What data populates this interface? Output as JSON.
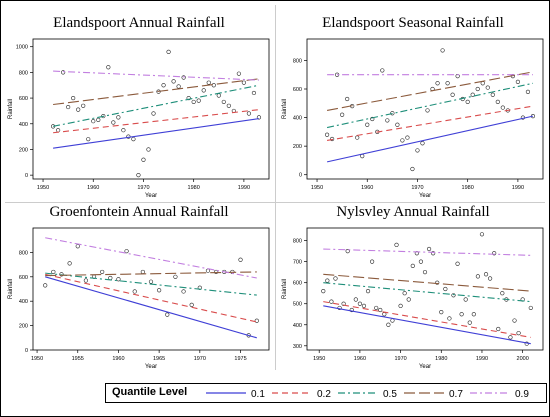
{
  "legend": {
    "title": "Quantile Level",
    "entries": [
      {
        "label": "0.1",
        "color": "#3f3fd6",
        "dash": "solid"
      },
      {
        "label": "0.2",
        "color": "#d94c4c",
        "dash": "dashed"
      },
      {
        "label": "0.5",
        "color": "#1f8f7a",
        "dash": "dashdot"
      },
      {
        "label": "0.7",
        "color": "#8b5a3c",
        "dash": "longdash"
      },
      {
        "label": "0.9",
        "color": "#c27fe0",
        "dash": "dashdot"
      }
    ]
  },
  "chart_data": [
    {
      "type": "scatter",
      "title": "Elandspoort Annual Rainfall",
      "xlabel": "Year",
      "ylabel": "Rainfall",
      "xlim": [
        1948,
        1995
      ],
      "ylim": [
        -30,
        1060
      ],
      "xticks": [
        1950,
        1960,
        1970,
        1980,
        1990
      ],
      "yticks": [
        0,
        200,
        400,
        600,
        800,
        1000
      ],
      "points": [
        [
          1952,
          380
        ],
        [
          1953,
          350
        ],
        [
          1954,
          800
        ],
        [
          1955,
          530
        ],
        [
          1956,
          600
        ],
        [
          1957,
          510
        ],
        [
          1958,
          540
        ],
        [
          1959,
          280
        ],
        [
          1960,
          420
        ],
        [
          1961,
          430
        ],
        [
          1962,
          460
        ],
        [
          1963,
          840
        ],
        [
          1964,
          410
        ],
        [
          1965,
          450
        ],
        [
          1966,
          350
        ],
        [
          1967,
          300
        ],
        [
          1968,
          280
        ],
        [
          1969,
          0
        ],
        [
          1970,
          120
        ],
        [
          1971,
          200
        ],
        [
          1972,
          480
        ],
        [
          1973,
          650
        ],
        [
          1974,
          700
        ],
        [
          1975,
          960
        ],
        [
          1976,
          730
        ],
        [
          1977,
          690
        ],
        [
          1978,
          760
        ],
        [
          1979,
          600
        ],
        [
          1980,
          570
        ],
        [
          1981,
          580
        ],
        [
          1982,
          660
        ],
        [
          1983,
          720
        ],
        [
          1984,
          700
        ],
        [
          1985,
          620
        ],
        [
          1986,
          570
        ],
        [
          1987,
          540
        ],
        [
          1988,
          500
        ],
        [
          1989,
          790
        ],
        [
          1990,
          720
        ],
        [
          1991,
          480
        ],
        [
          1992,
          640
        ],
        [
          1993,
          450
        ]
      ],
      "series": [
        {
          "name": "0.1",
          "x": [
            1952,
            1993
          ],
          "y": [
            210,
            440
          ]
        },
        {
          "name": "0.2",
          "x": [
            1952,
            1993
          ],
          "y": [
            330,
            510
          ]
        },
        {
          "name": "0.5",
          "x": [
            1952,
            1993
          ],
          "y": [
            380,
            700
          ]
        },
        {
          "name": "0.7",
          "x": [
            1952,
            1993
          ],
          "y": [
            550,
            750
          ]
        },
        {
          "name": "0.9",
          "x": [
            1952,
            1993
          ],
          "y": [
            810,
            740
          ]
        }
      ]
    },
    {
      "type": "scatter",
      "title": "Elandspoort Seasonal Rainfall",
      "xlabel": "Year",
      "ylabel": "Rainfall",
      "xlim": [
        1948,
        1995
      ],
      "ylim": [
        -30,
        950
      ],
      "xticks": [
        1950,
        1960,
        1970,
        1980,
        1990
      ],
      "yticks": [
        0,
        200,
        400,
        600,
        800
      ],
      "points": [
        [
          1952,
          280
        ],
        [
          1953,
          250
        ],
        [
          1954,
          700
        ],
        [
          1955,
          420
        ],
        [
          1956,
          530
        ],
        [
          1957,
          480
        ],
        [
          1958,
          260
        ],
        [
          1959,
          130
        ],
        [
          1960,
          350
        ],
        [
          1961,
          390
        ],
        [
          1962,
          300
        ],
        [
          1963,
          730
        ],
        [
          1964,
          380
        ],
        [
          1965,
          430
        ],
        [
          1966,
          350
        ],
        [
          1967,
          240
        ],
        [
          1968,
          260
        ],
        [
          1969,
          40
        ],
        [
          1970,
          170
        ],
        [
          1971,
          220
        ],
        [
          1972,
          450
        ],
        [
          1973,
          600
        ],
        [
          1974,
          640
        ],
        [
          1975,
          870
        ],
        [
          1976,
          640
        ],
        [
          1977,
          560
        ],
        [
          1978,
          690
        ],
        [
          1979,
          530
        ],
        [
          1980,
          510
        ],
        [
          1981,
          560
        ],
        [
          1982,
          600
        ],
        [
          1983,
          640
        ],
        [
          1984,
          610
        ],
        [
          1985,
          560
        ],
        [
          1986,
          510
        ],
        [
          1987,
          470
        ],
        [
          1988,
          450
        ],
        [
          1989,
          690
        ],
        [
          1990,
          650
        ],
        [
          1991,
          400
        ],
        [
          1992,
          580
        ],
        [
          1993,
          410
        ]
      ],
      "series": [
        {
          "name": "0.1",
          "x": [
            1952,
            1993
          ],
          "y": [
            90,
            410
          ]
        },
        {
          "name": "0.2",
          "x": [
            1952,
            1993
          ],
          "y": [
            240,
            480
          ]
        },
        {
          "name": "0.5",
          "x": [
            1952,
            1993
          ],
          "y": [
            330,
            640
          ]
        },
        {
          "name": "0.7",
          "x": [
            1952,
            1993
          ],
          "y": [
            450,
            720
          ]
        },
        {
          "name": "0.9",
          "x": [
            1952,
            1993
          ],
          "y": [
            700,
            700
          ]
        }
      ]
    },
    {
      "type": "scatter",
      "title": "Groenfontein Annual Rainfall",
      "xlabel": "Year",
      "ylabel": "Rainfall",
      "xlim": [
        1949.5,
        1978.5
      ],
      "ylim": [
        0,
        1000
      ],
      "xticks": [
        1950,
        1955,
        1960,
        1965,
        1970,
        1975
      ],
      "yticks": [
        0,
        200,
        400,
        600,
        800
      ],
      "points": [
        [
          1951,
          530
        ],
        [
          1952,
          640
        ],
        [
          1953,
          620
        ],
        [
          1954,
          710
        ],
        [
          1955,
          850
        ],
        [
          1956,
          570
        ],
        [
          1957,
          600
        ],
        [
          1958,
          640
        ],
        [
          1959,
          590
        ],
        [
          1960,
          580
        ],
        [
          1961,
          810
        ],
        [
          1962,
          480
        ],
        [
          1963,
          640
        ],
        [
          1964,
          560
        ],
        [
          1965,
          490
        ],
        [
          1966,
          290
        ],
        [
          1967,
          600
        ],
        [
          1968,
          480
        ],
        [
          1969,
          370
        ],
        [
          1970,
          510
        ],
        [
          1971,
          650
        ],
        [
          1972,
          640
        ],
        [
          1973,
          640
        ],
        [
          1974,
          640
        ],
        [
          1975,
          740
        ],
        [
          1976,
          120
        ],
        [
          1977,
          240
        ]
      ],
      "series": [
        {
          "name": "0.1",
          "x": [
            1951,
            1977
          ],
          "y": [
            600,
            100
          ]
        },
        {
          "name": "0.2",
          "x": [
            1951,
            1977
          ],
          "y": [
            620,
            230
          ]
        },
        {
          "name": "0.5",
          "x": [
            1951,
            1977
          ],
          "y": [
            630,
            450
          ]
        },
        {
          "name": "0.7",
          "x": [
            1951,
            1977
          ],
          "y": [
            610,
            640
          ]
        },
        {
          "name": "0.9",
          "x": [
            1951,
            1977
          ],
          "y": [
            920,
            590
          ]
        }
      ]
    },
    {
      "type": "scatter",
      "title": "Nylsvley Annual Rainfall",
      "xlabel": "Year",
      "ylabel": "Rainfall",
      "xlim": [
        1947,
        2005
      ],
      "ylim": [
        280,
        860
      ],
      "xticks": [
        1950,
        1960,
        1970,
        1980,
        1990,
        2000
      ],
      "yticks": [
        300,
        400,
        500,
        600,
        700,
        800
      ],
      "points": [
        [
          1951,
          560
        ],
        [
          1952,
          610
        ],
        [
          1953,
          510
        ],
        [
          1954,
          620
        ],
        [
          1955,
          480
        ],
        [
          1956,
          500
        ],
        [
          1957,
          750
        ],
        [
          1958,
          470
        ],
        [
          1959,
          520
        ],
        [
          1960,
          500
        ],
        [
          1961,
          490
        ],
        [
          1962,
          560
        ],
        [
          1963,
          700
        ],
        [
          1964,
          480
        ],
        [
          1965,
          470
        ],
        [
          1966,
          450
        ],
        [
          1967,
          400
        ],
        [
          1968,
          420
        ],
        [
          1969,
          780
        ],
        [
          1970,
          490
        ],
        [
          1971,
          550
        ],
        [
          1972,
          520
        ],
        [
          1973,
          680
        ],
        [
          1974,
          740
        ],
        [
          1975,
          700
        ],
        [
          1976,
          650
        ],
        [
          1977,
          760
        ],
        [
          1978,
          740
        ],
        [
          1979,
          600
        ],
        [
          1980,
          460
        ],
        [
          1981,
          570
        ],
        [
          1982,
          430
        ],
        [
          1983,
          540
        ],
        [
          1984,
          690
        ],
        [
          1985,
          450
        ],
        [
          1986,
          520
        ],
        [
          1987,
          410
        ],
        [
          1988,
          450
        ],
        [
          1989,
          630
        ],
        [
          1990,
          830
        ],
        [
          1991,
          640
        ],
        [
          1992,
          620
        ],
        [
          1993,
          740
        ],
        [
          1994,
          380
        ],
        [
          1995,
          550
        ],
        [
          1996,
          520
        ],
        [
          1997,
          340
        ],
        [
          1998,
          420
        ],
        [
          1999,
          360
        ],
        [
          2000,
          520
        ],
        [
          2001,
          310
        ],
        [
          2002,
          480
        ]
      ],
      "series": [
        {
          "name": "0.1",
          "x": [
            1951,
            2002
          ],
          "y": [
            490,
            310
          ]
        },
        {
          "name": "0.2",
          "x": [
            1951,
            2002
          ],
          "y": [
            510,
            340
          ]
        },
        {
          "name": "0.5",
          "x": [
            1951,
            2002
          ],
          "y": [
            600,
            510
          ]
        },
        {
          "name": "0.7",
          "x": [
            1951,
            2002
          ],
          "y": [
            640,
            560
          ]
        },
        {
          "name": "0.9",
          "x": [
            1951,
            2002
          ],
          "y": [
            760,
            730
          ]
        }
      ]
    }
  ]
}
